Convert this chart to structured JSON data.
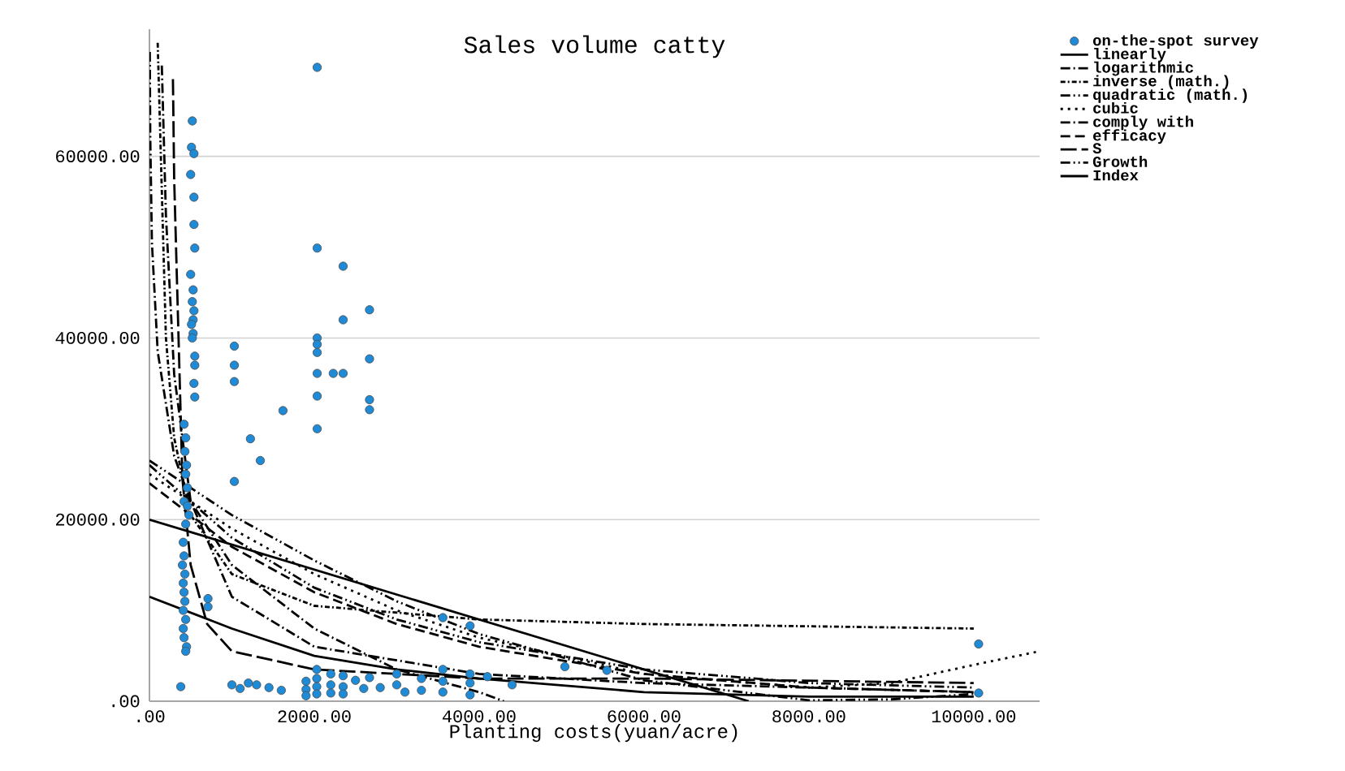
{
  "chart_data": {
    "type": "scatter",
    "title": "Sales volume catty",
    "xlabel": "Planting costs(yuan/acre)",
    "xlim": [
      0,
      10800
    ],
    "ylim": [
      0,
      74000
    ],
    "xticks": [
      {
        "value": 0,
        "label": ".00"
      },
      {
        "value": 2000,
        "label": "2000.00"
      },
      {
        "value": 4000,
        "label": "4000.00"
      },
      {
        "value": 6000,
        "label": "6000.00"
      },
      {
        "value": 8000,
        "label": "8000.00"
      },
      {
        "value": 10000,
        "label": "10000.00"
      }
    ],
    "yticks": [
      {
        "value": 0,
        "label": ".00"
      },
      {
        "value": 20000,
        "label": "20000.00"
      },
      {
        "value": 40000,
        "label": "40000.00"
      },
      {
        "value": 60000,
        "label": "60000.00"
      }
    ],
    "grid": "y",
    "legend": "top right",
    "series": [
      {
        "name": "on-the-spot survey",
        "marker": "circle",
        "color": "#1f8ad6",
        "x": [
          520,
          510,
          540,
          500,
          540,
          540,
          550,
          500,
          530,
          520,
          540,
          530,
          510,
          530,
          520,
          550,
          550,
          540,
          550,
          420,
          440,
          430,
          450,
          440,
          460,
          420,
          460,
          480,
          440,
          410,
          420,
          400,
          430,
          410,
          420,
          430,
          410,
          440,
          410,
          420,
          450,
          440,
          380,
          710,
          710,
          1030,
          1030,
          1030,
          1030,
          1225,
          1345,
          1620,
          2035,
          2035,
          2035,
          2035,
          2035,
          2035,
          2035,
          2035,
          2230,
          2350,
          2350,
          2350,
          2670,
          2670,
          2670,
          2670,
          3560,
          3890,
          5040,
          5550,
          10060,
          10060,
          1000,
          1100,
          1200,
          1300,
          1450,
          1600,
          1900,
          1900,
          1900,
          2030,
          2030,
          2030,
          2030,
          2200,
          2200,
          2200,
          2350,
          2350,
          2350,
          2500,
          2600,
          2670,
          2800,
          3000,
          3000,
          3100,
          3300,
          3300,
          3560,
          3560,
          3560,
          3890,
          3890,
          3890,
          4100,
          4400
        ],
        "values": [
          63900,
          61000,
          60300,
          58000,
          55500,
          52500,
          49900,
          47000,
          45300,
          44000,
          43000,
          42000,
          41500,
          40500,
          40000,
          38000,
          37000,
          35000,
          33500,
          30500,
          29000,
          27500,
          26000,
          25000,
          23500,
          22000,
          21500,
          20500,
          19500,
          17500,
          16000,
          15000,
          14000,
          13000,
          12000,
          11000,
          10000,
          9000,
          8000,
          7000,
          6000,
          5500,
          1600,
          11300,
          10400,
          39100,
          37000,
          35200,
          24200,
          28900,
          26500,
          32000,
          69800,
          49900,
          40000,
          39300,
          38400,
          36100,
          33600,
          30000,
          36100,
          47900,
          42000,
          36100,
          43100,
          37700,
          33200,
          32100,
          9200,
          8300,
          3800,
          3400,
          6300,
          900,
          1800,
          1400,
          2000,
          1800,
          1500,
          1200,
          2200,
          1300,
          600,
          3500,
          2500,
          1600,
          800,
          3000,
          1800,
          900,
          2800,
          1600,
          800,
          2300,
          1400,
          2600,
          1500,
          3000,
          1800,
          1000,
          2500,
          1200,
          3500,
          2200,
          1000,
          3000,
          2000,
          700,
          2700,
          1800
        ]
      },
      {
        "name": "linearly",
        "type": "line",
        "line_style": "solid",
        "color": "#000000",
        "x": [
          0,
          7270
        ],
        "values": [
          20000,
          0
        ]
      },
      {
        "name": "logarithmic",
        "type": "line",
        "line_style": "dashdot",
        "color": "#000000",
        "x": [
          4,
          10,
          30,
          100,
          300,
          500,
          1000,
          2000,
          3000,
          4000,
          4300
        ],
        "values": [
          71500,
          62000,
          50500,
          38500,
          27000,
          22000,
          15000,
          8000,
          3500,
          1000,
          0
        ]
      },
      {
        "name": "inverse (math.)",
        "type": "line",
        "line_style": "loosedashdot",
        "color": "#000000",
        "x": [
          100,
          200,
          300,
          500,
          1000,
          2000,
          4000,
          6000,
          10000
        ],
        "values": [
          72500,
          40000,
          29000,
          20500,
          14000,
          10500,
          9000,
          8500,
          8000
        ]
      },
      {
        "name": "quadratic (math.)",
        "type": "line",
        "line_style": "dashdotdot",
        "color": "#000000",
        "x": [
          0,
          1000,
          2000,
          3000,
          4000,
          6000,
          8000,
          9000,
          10000
        ],
        "values": [
          26500,
          20500,
          15500,
          11000,
          7400,
          2300,
          100,
          200,
          800
        ]
      },
      {
        "name": "cubic",
        "type": "line",
        "line_style": "dotted",
        "color": "#000000",
        "x": [
          0,
          1000,
          2000,
          3000,
          4000,
          6000,
          8000,
          9000,
          10000,
          10800
        ],
        "values": [
          25000,
          19000,
          14000,
          10000,
          7000,
          3000,
          1500,
          2000,
          4000,
          5500
        ]
      },
      {
        "name": "comply with",
        "type": "line",
        "line_style": "dashdot",
        "color": "#000000",
        "x": [
          150,
          200,
          300,
          500,
          1000,
          2000,
          4000,
          6000,
          10000
        ],
        "values": [
          70000,
          53500,
          36000,
          22000,
          11500,
          6000,
          3000,
          2000,
          1000
        ]
      },
      {
        "name": "efficacy",
        "type": "line",
        "line_style": "dashed",
        "color": "#000000",
        "x": [
          0,
          1000,
          2000,
          3000,
          4000,
          6000,
          8000,
          10000
        ],
        "values": [
          24000,
          17000,
          12000,
          8500,
          6000,
          3000,
          1500,
          1000
        ]
      },
      {
        "name": "S",
        "type": "line",
        "line_style": "longdash",
        "color": "#000000",
        "x": [
          285,
          300,
          400,
          500,
          700,
          1000,
          2000,
          4000,
          6000,
          10000
        ],
        "values": [
          68500,
          57500,
          24500,
          15000,
          8500,
          5500,
          3500,
          2500,
          2500,
          2000
        ]
      },
      {
        "name": "Growth",
        "type": "line",
        "line_style": "dashdotdot",
        "color": "#000000",
        "x": [
          0,
          1000,
          2000,
          3000,
          4000,
          6000,
          8000,
          10000
        ],
        "values": [
          26000,
          18000,
          12500,
          9000,
          6500,
          3500,
          2000,
          1500
        ]
      },
      {
        "name": "Index",
        "type": "line",
        "line_style": "solid",
        "color": "#000000",
        "x": [
          0,
          1000,
          2000,
          3000,
          4000,
          6000,
          8000,
          10000
        ],
        "values": [
          11500,
          8000,
          5000,
          3500,
          2500,
          1000,
          500,
          500
        ]
      }
    ]
  }
}
